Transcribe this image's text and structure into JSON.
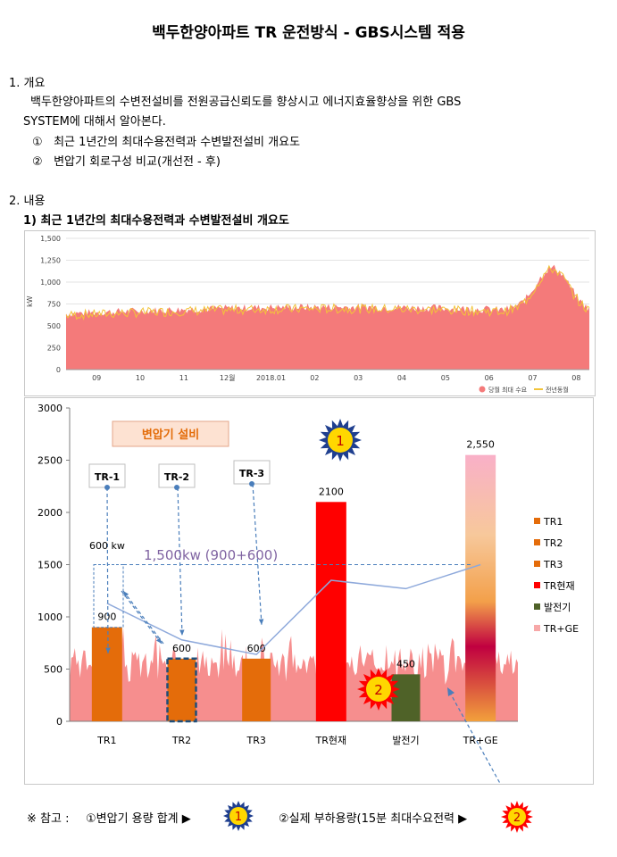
{
  "title": "백두한양아파트 TR 운전방식 - GBS시스템 적용",
  "section1": {
    "heading": "1. 개요",
    "line1": "백두한양아파트의 수변전설비를 전원공급신뢰도를 향상시고 에너지효율향상을 위한 GBS",
    "line2": "SYSTEM에 대해서 알아본다.",
    "items": [
      {
        "num": "①",
        "text": "최근 1년간의 최대수용전력과 수변발전설비 개요도"
      },
      {
        "num": "②",
        "text": "변압기 회로구성 비교(개선전 - 후)"
      }
    ]
  },
  "section2": {
    "heading": "2. 내용",
    "subheading": "1) 최근 1년간의 최대수용전력과 수변발전설비 개요도"
  },
  "colors": {
    "area": "#f47a7a",
    "line": "#f2c43a",
    "tr_orange": "#e46c0a",
    "tr_now": "#ff0000",
    "generator": "#4f6228",
    "annotation": "#8064a2",
    "arrow": "#4a7ebb"
  },
  "chart_data": [
    {
      "type": "area",
      "ylabel": "kW",
      "ylim": [
        0,
        1500
      ],
      "yticks": [
        "0",
        "250",
        "500",
        "750",
        "1,000",
        "1,250",
        "1,500"
      ],
      "xticks": [
        "09",
        "10",
        "11",
        "12월",
        "2018.01",
        "02",
        "03",
        "04",
        "05",
        "06",
        "07",
        "08"
      ],
      "legend": [
        "당월 최대 수요",
        "전년동월"
      ],
      "legend_position": "bottom-right",
      "series_shape": {
        "baseline_start": 640,
        "baseline_end": 650,
        "peak_month": "07",
        "peak_value": 1200
      }
    },
    {
      "type": "bar",
      "ylim": [
        0,
        3000
      ],
      "yticks": [
        "0",
        "500",
        "1000",
        "1500",
        "2000",
        "2500",
        "3000"
      ],
      "categories": [
        "TR1",
        "TR2",
        "TR3",
        "TR현재",
        "발전기",
        "TR+GE"
      ],
      "values": [
        900,
        600,
        600,
        2100,
        450,
        2550
      ],
      "value_labels": [
        "900",
        "600",
        "600",
        "2100",
        "450",
        "2,550"
      ],
      "legend": [
        "TR1",
        "TR2",
        "TR3",
        "TR현재",
        "발전기",
        "TR+GE"
      ],
      "legend_position": "right",
      "line_series": [
        1130,
        780,
        640,
        1350,
        1270,
        1500
      ],
      "annotations": {
        "box_title": "변압기 설비",
        "callouts": [
          "TR-1",
          "TR-2",
          "TR-3"
        ],
        "kw_label": "600 kw",
        "sum_label": "1,500kw (900+600)",
        "badge1": "1",
        "badge2": "2"
      }
    }
  ],
  "note": {
    "prefix": "※ 참고 :",
    "item1": "①변압기 용량 합계 ▶",
    "item2": "②실제 부하용량(15분 최대수요전력 ▶",
    "badge1": "1",
    "badge2": "2"
  }
}
